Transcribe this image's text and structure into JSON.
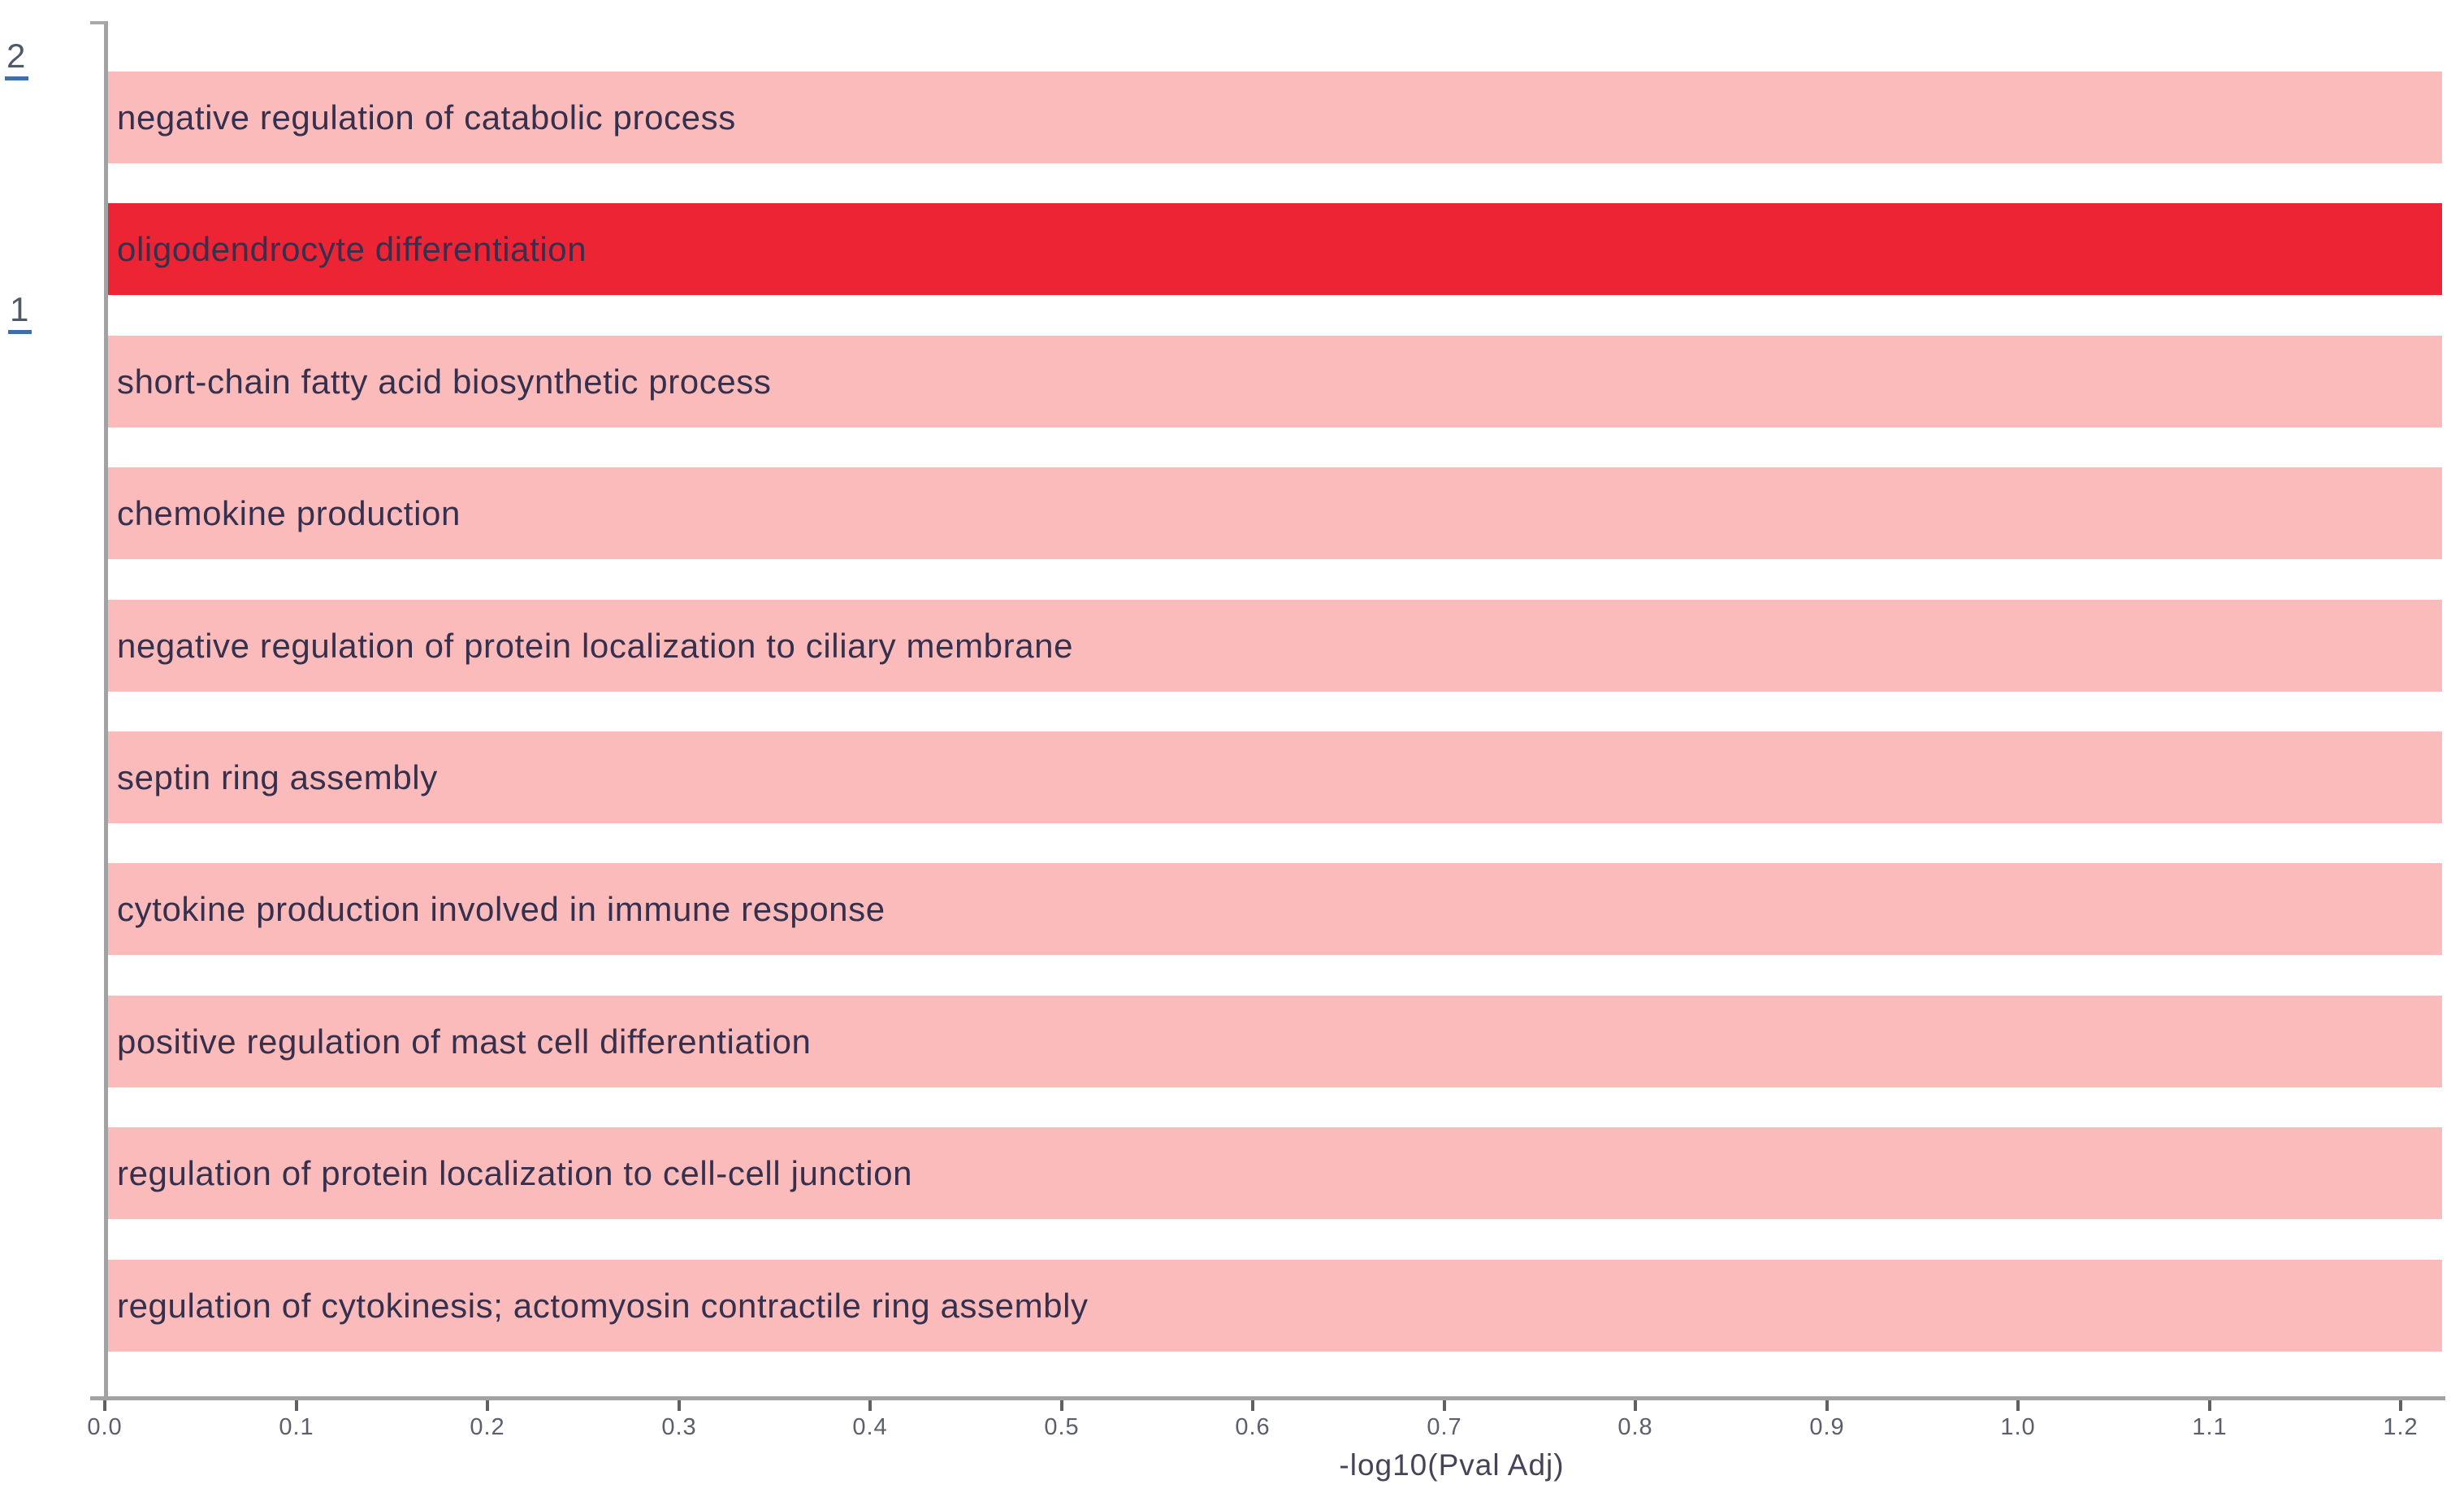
{
  "chart_data": {
    "type": "bar",
    "orientation": "horizontal",
    "title": "",
    "xlabel": "-log10(Pval Adj)",
    "ylabel": "",
    "categories": [
      "negative regulation of catabolic process",
      "oligodendrocyte differentiation",
      "short-chain fatty acid biosynthetic process",
      "chemokine production",
      "negative regulation of protein localization to ciliary membrane",
      "septin ring assembly",
      "cytokine production involved in immune response",
      "positive regulation of mast cell differentiation",
      "regulation of protein localization to cell-cell junction",
      "regulation of cytokinesis; actomyosin contractile ring assembly"
    ],
    "values": [
      1.22,
      1.22,
      1.22,
      1.22,
      1.22,
      1.22,
      1.22,
      1.22,
      1.22,
      1.22
    ],
    "highlighted_index": 1,
    "highlighted_category": "oligodendrocyte differentiation",
    "xlim": [
      0.0,
      1.225
    ],
    "xticks": [
      "0.0",
      "0.1",
      "0.2",
      "0.3",
      "0.4",
      "0.5",
      "0.6",
      "0.7",
      "0.8",
      "0.9",
      "1.0",
      "1.1",
      "1.2"
    ],
    "grid": false,
    "legend": "none",
    "colors": {
      "bar": "#fcbbbb",
      "highlight": "#ed2433",
      "bar_label_text": "#35304e",
      "axis_line": "#a2a2a2",
      "tick_mark": "#606060",
      "tick_label_text": "#5c5f6b",
      "axis_title_text": "#474357",
      "background": "#ffffff"
    }
  },
  "left_margin_labels": [
    {
      "text": "2"
    },
    {
      "text": "1"
    }
  ]
}
